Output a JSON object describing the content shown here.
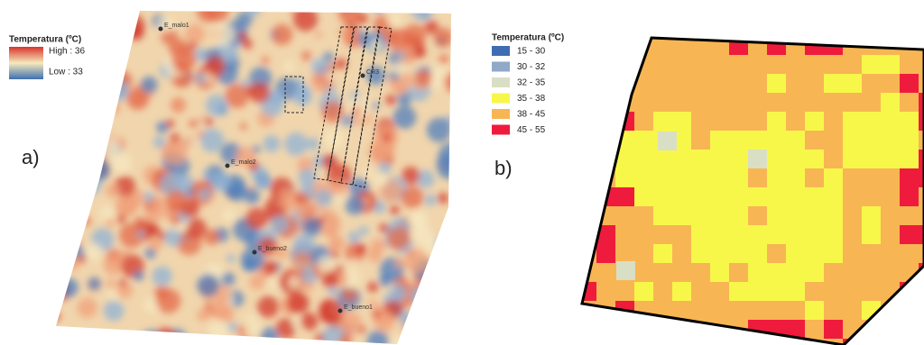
{
  "panel_a": {
    "label": "a)",
    "legend": {
      "title": "Temperatura (ºC)",
      "high": "High : 36",
      "low": "Low : 33"
    },
    "points": [
      "E_malo1",
      "E_malo2",
      "E_bueno2",
      "E_bueno1",
      "CR3"
    ]
  },
  "panel_b": {
    "label": "b)",
    "legend": {
      "title": "Temperatura (ºC)",
      "items": [
        {
          "label": "15 - 30",
          "color": "#3f6db3"
        },
        {
          "label": "30 - 32",
          "color": "#8fa9c8"
        },
        {
          "label": "32 - 35",
          "color": "#d9dfc4"
        },
        {
          "label": "35 - 38",
          "color": "#f7f74a"
        },
        {
          "label": "38 - 45",
          "color": "#f8b554"
        },
        {
          "label": "45 - 55",
          "color": "#ef1b3c"
        }
      ]
    }
  }
}
